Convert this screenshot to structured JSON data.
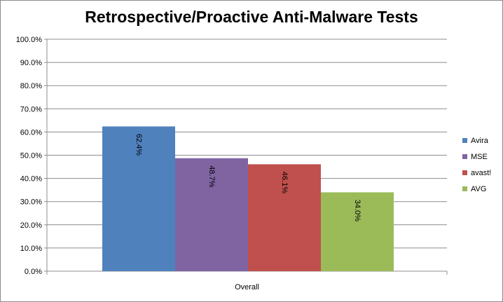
{
  "chart_data": {
    "type": "bar",
    "title": "Retrospective/Proactive Anti-Malware Tests",
    "categories": [
      "Overall"
    ],
    "series": [
      {
        "name": "Avira",
        "values": [
          62.4
        ],
        "color": "#4f81bd",
        "label": "62.4%"
      },
      {
        "name": "MSE",
        "values": [
          48.7
        ],
        "color": "#8064a2",
        "label": "48.7%"
      },
      {
        "name": "avast!",
        "values": [
          46.1
        ],
        "color": "#c0504d",
        "label": "46.1%"
      },
      {
        "name": "AVG",
        "values": [
          34.0
        ],
        "color": "#9bbb59",
        "label": "34.0%"
      }
    ],
    "ylim": [
      0,
      100
    ],
    "yticks": [
      "0.0%",
      "10.0%",
      "20.0%",
      "30.0%",
      "40.0%",
      "50.0%",
      "60.0%",
      "70.0%",
      "80.0%",
      "90.0%",
      "100.0%"
    ],
    "grid": true,
    "legend": "right",
    "data_labels": "rotated-vertical"
  }
}
